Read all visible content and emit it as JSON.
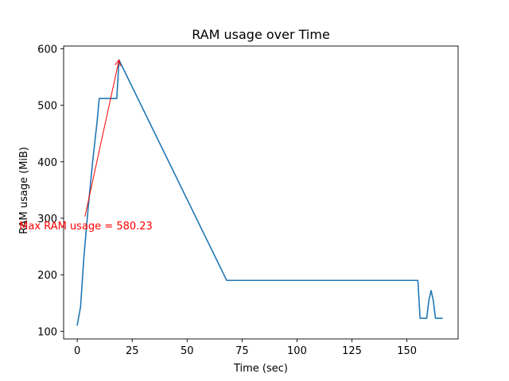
{
  "chart_data": {
    "type": "line",
    "title": "RAM usage over Time",
    "xlabel": "Time (sec)",
    "ylabel": "RAM usage (MiB)",
    "xlim": [
      -6.2,
      173.3
    ],
    "ylim": [
      86.4,
      604.8
    ],
    "xticks": [
      0,
      25,
      50,
      75,
      100,
      125,
      150
    ],
    "xtick_labels": [
      "0",
      "25",
      "50",
      "75",
      "100",
      "125",
      "150"
    ],
    "yticks": [
      100,
      200,
      300,
      400,
      500,
      600
    ],
    "ytick_labels": [
      "100",
      "200",
      "300",
      "400",
      "500",
      "600"
    ],
    "grid": false,
    "legend": "none",
    "series": [
      {
        "color": "#1f77b4",
        "x": [
          0,
          1.5,
          3,
          5,
          7,
          9,
          10,
          15,
          16,
          17,
          18,
          19,
          68,
          154,
          155,
          156,
          159,
          160,
          161,
          162,
          163,
          165,
          166
        ],
        "y": [
          111,
          143,
          230,
          320,
          400,
          470,
          512,
          512,
          512,
          512,
          512,
          580.23,
          190,
          190,
          190,
          123,
          123,
          155,
          172,
          155,
          123,
          123,
          123
        ]
      }
    ],
    "annotation": {
      "text": "Max RAM usage = 580.23",
      "color": "#ff0000",
      "point": [
        19,
        580.23
      ],
      "text_anchor_data": [
        3.5,
        303
      ]
    }
  }
}
